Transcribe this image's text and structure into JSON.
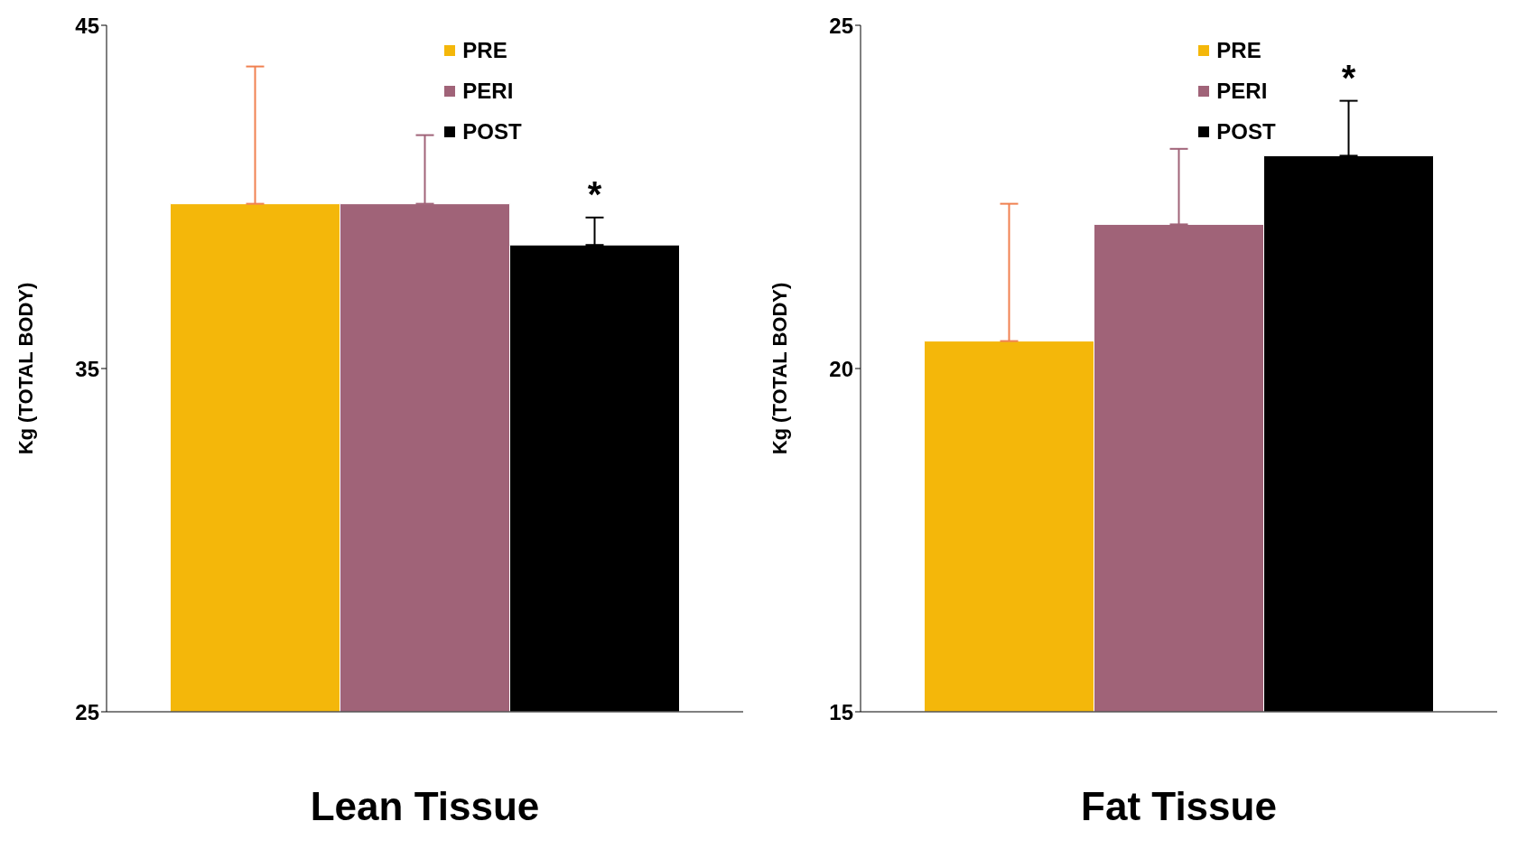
{
  "chart_data": [
    {
      "type": "bar",
      "xlabel": "Lean Tissue",
      "ylabel": "Kg (TOTAL BODY)",
      "categories": [
        null
      ],
      "series": [
        {
          "name": "PRE",
          "color": "#f4b70a",
          "values": [
            39.8
          ],
          "errors": [
            [
              39.8,
              43.8
            ]
          ]
        },
        {
          "name": "PERI",
          "color": "#a06378",
          "values": [
            39.8
          ],
          "errors": [
            [
              39.8,
              41.8
            ]
          ]
        },
        {
          "name": "POST",
          "color": "#000000",
          "values": [
            38.6
          ],
          "errors": [
            [
              38.6,
              39.4
            ]
          ]
        }
      ],
      "ylim": [
        25,
        45
      ],
      "yticks": [
        25,
        35,
        45
      ],
      "grid": false,
      "legend": "top",
      "annotations": [
        "*"
      ]
    },
    {
      "type": "bar",
      "xlabel": "Fat Tissue",
      "ylabel": "Kg (TOTAL BODY)",
      "categories": [
        null
      ],
      "series": [
        {
          "name": "PRE",
          "color": "#f4b70a",
          "values": [
            20.4
          ],
          "errors": [
            [
              20.4,
              22.4
            ]
          ]
        },
        {
          "name": "PERI",
          "color": "#a06378",
          "values": [
            22.1
          ],
          "errors": [
            [
              22.1,
              23.2
            ]
          ]
        },
        {
          "name": "POST",
          "color": "#000000",
          "values": [
            23.1
          ],
          "errors": [
            [
              23.1,
              23.9
            ]
          ]
        }
      ],
      "ylim": [
        15,
        25
      ],
      "yticks": [
        15,
        20,
        25
      ],
      "grid": false,
      "legend": "top",
      "annotations": [
        "*"
      ]
    }
  ]
}
